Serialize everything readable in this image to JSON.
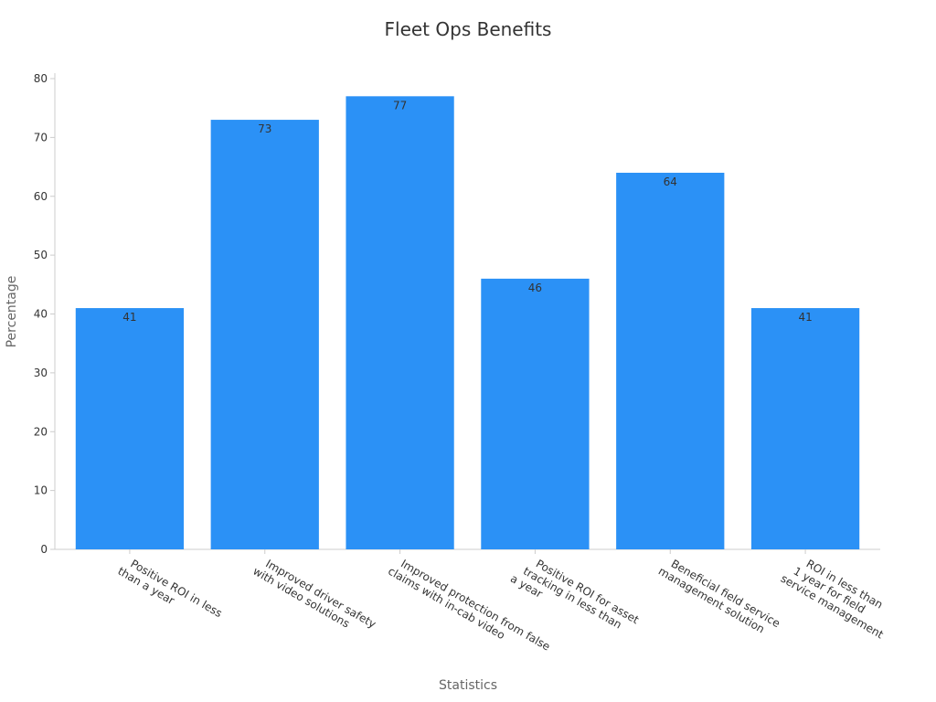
{
  "chart_data": {
    "type": "bar",
    "title": "Fleet Ops Benefits",
    "xlabel": "Statistics",
    "ylabel": "Percentage",
    "categories": [
      "Positive ROI in less than a year",
      "Improved driver safety with video solutions",
      "Improved protection from false claims with in-cab video",
      "Positive ROI for asset tracking in less than a year",
      "Beneficial field service management solution",
      "ROI in less than 1 year for field service management"
    ],
    "category_label_lines": [
      [
        "Positive ROI in less",
        "than a year"
      ],
      [
        "Improved driver safety",
        "with video solutions"
      ],
      [
        "Improved protection from false",
        "claims with in-cab video"
      ],
      [
        "Positive ROI for asset",
        "tracking in less than",
        "a year"
      ],
      [
        "Beneficial field service",
        "management solution"
      ],
      [
        "ROI in less than",
        "1 year for field",
        "service management"
      ]
    ],
    "values": [
      41,
      73,
      77,
      46,
      64,
      41
    ],
    "data_labels": [
      "41",
      "73",
      "77",
      "46",
      "64",
      "41"
    ],
    "ylim": [
      0,
      80
    ],
    "yticks": [
      0,
      10,
      20,
      30,
      40,
      50,
      60,
      70,
      80
    ],
    "grid": false,
    "legend": "none",
    "colors": {
      "bar": "#2b91f6",
      "axis": "#cccccc",
      "text": "#333333",
      "label": "#666666"
    }
  }
}
